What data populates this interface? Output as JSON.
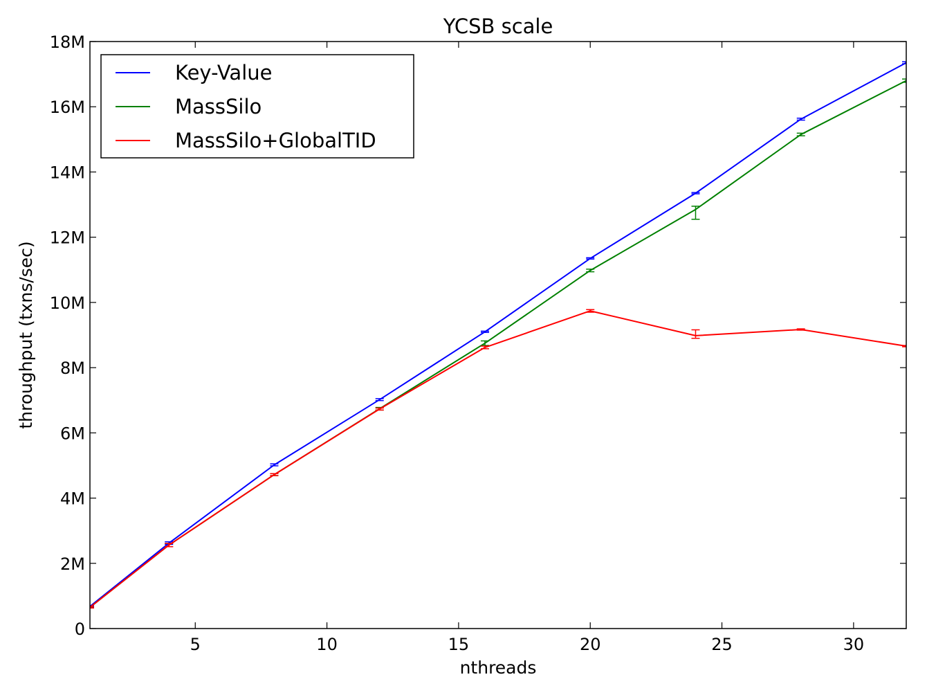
{
  "chart_data": {
    "type": "line",
    "title": "YCSB scale",
    "xlabel": "nthreads",
    "ylabel": "throughput (txns/sec)",
    "xlim": [
      1,
      32
    ],
    "ylim": [
      0,
      18000000
    ],
    "xticks": [
      5,
      10,
      15,
      20,
      25,
      30
    ],
    "xtick_labels": [
      "5",
      "10",
      "15",
      "20",
      "25",
      "30"
    ],
    "yticks": [
      0,
      2000000,
      4000000,
      6000000,
      8000000,
      10000000,
      12000000,
      14000000,
      16000000,
      18000000
    ],
    "ytick_labels": [
      "0",
      "2M",
      "4M",
      "6M",
      "8M",
      "10M",
      "12M",
      "14M",
      "16M",
      "18M"
    ],
    "grid": false,
    "legend": "top-left",
    "x": [
      1,
      4,
      8,
      12,
      16,
      20,
      24,
      28,
      32
    ],
    "series": [
      {
        "name": "Key-Value",
        "color": "#0000ff",
        "values": [
          680000,
          2620000,
          5020000,
          7020000,
          9100000,
          11350000,
          13350000,
          15620000,
          17350000
        ],
        "err_low": [
          20000,
          40000,
          30000,
          30000,
          20000,
          20000,
          20000,
          30000,
          30000
        ],
        "err_high": [
          20000,
          40000,
          30000,
          30000,
          20000,
          20000,
          20000,
          30000,
          30000
        ]
      },
      {
        "name": "MassSilo",
        "color": "#008000",
        "values": [
          650000,
          2560000,
          4720000,
          6740000,
          8750000,
          10980000,
          12850000,
          15150000,
          16800000
        ],
        "err_low": [
          20000,
          50000,
          30000,
          40000,
          70000,
          40000,
          300000,
          40000,
          50000
        ],
        "err_high": [
          20000,
          50000,
          30000,
          40000,
          70000,
          40000,
          100000,
          40000,
          50000
        ]
      },
      {
        "name": "MassSilo+GlobalTID",
        "color": "#ff0000",
        "values": [
          650000,
          2560000,
          4720000,
          6730000,
          8620000,
          9740000,
          8980000,
          9170000,
          8660000
        ],
        "err_low": [
          20000,
          50000,
          30000,
          30000,
          40000,
          40000,
          80000,
          20000,
          20000
        ],
        "err_high": [
          20000,
          50000,
          30000,
          30000,
          40000,
          40000,
          180000,
          20000,
          20000
        ]
      }
    ]
  }
}
